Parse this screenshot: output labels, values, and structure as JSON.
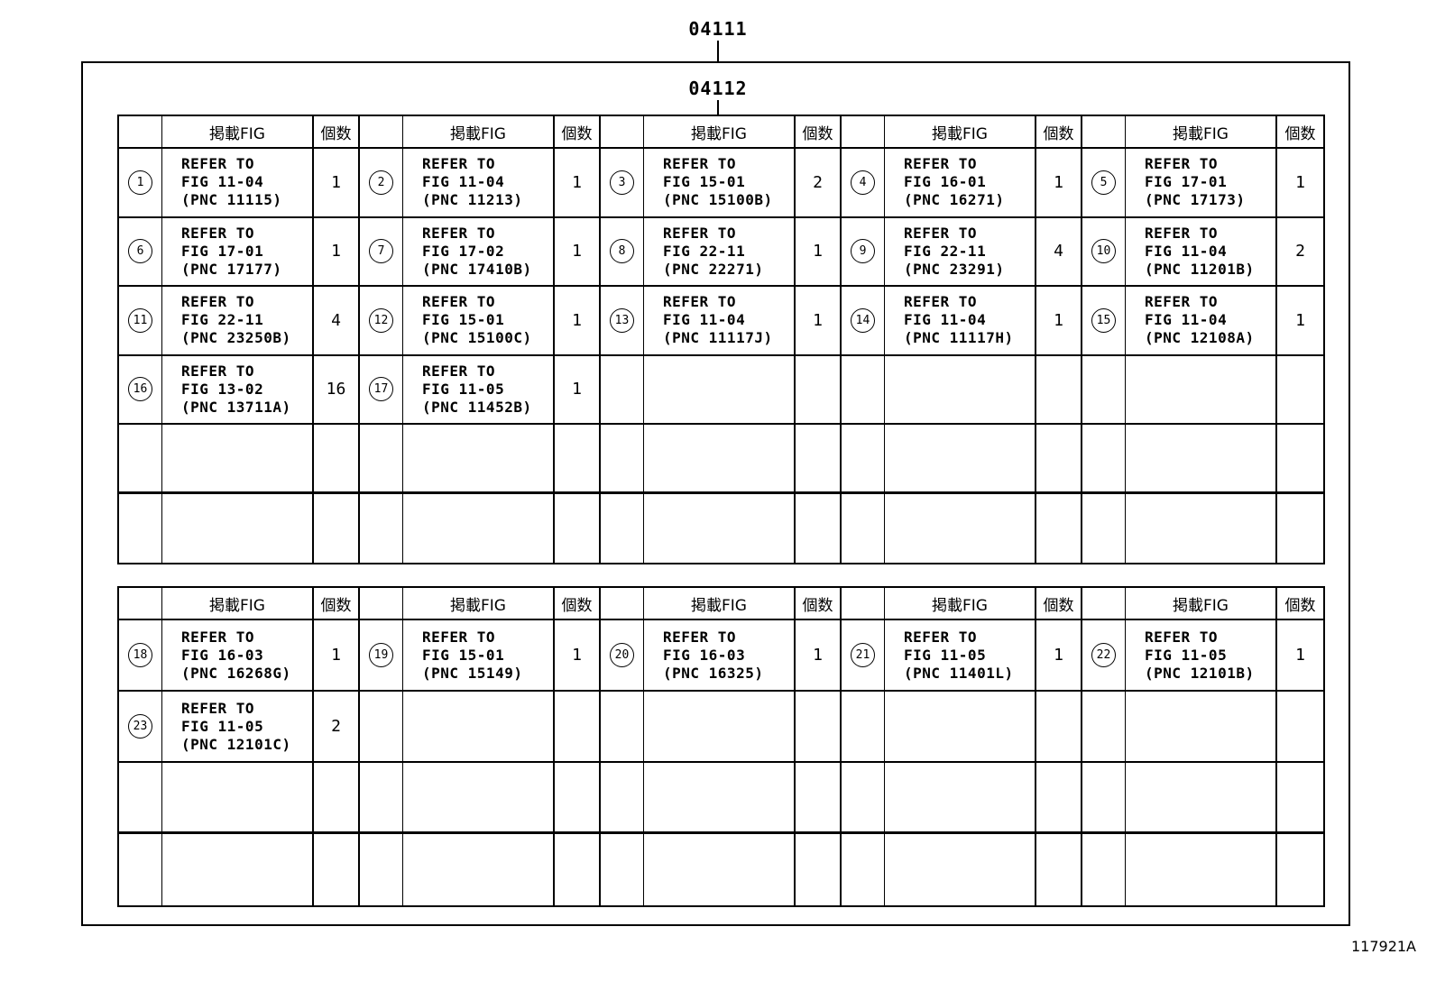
{
  "page": {
    "label_04111": "04111",
    "label_04112": "04112",
    "doc_code": "117921A"
  },
  "headers": {
    "fig": "掲載FIG",
    "qty": "個数"
  },
  "labels": {
    "refer": "REFER TO"
  },
  "tables": [
    {
      "name": "upper",
      "rows": [
        [
          {
            "no": "1",
            "fig": "FIG 11-04",
            "pnc": "(PNC 11115)",
            "qty": "1"
          },
          {
            "no": "2",
            "fig": "FIG 11-04",
            "pnc": "(PNC 11213)",
            "qty": "1"
          },
          {
            "no": "3",
            "fig": "FIG 15-01",
            "pnc": "(PNC 15100B)",
            "qty": "2"
          },
          {
            "no": "4",
            "fig": "FIG 16-01",
            "pnc": "(PNC 16271)",
            "qty": "1"
          },
          {
            "no": "5",
            "fig": "FIG 17-01",
            "pnc": "(PNC 17173)",
            "qty": "1"
          }
        ],
        [
          {
            "no": "6",
            "fig": "FIG 17-01",
            "pnc": "(PNC 17177)",
            "qty": "1"
          },
          {
            "no": "7",
            "fig": "FIG 17-02",
            "pnc": "(PNC 17410B)",
            "qty": "1"
          },
          {
            "no": "8",
            "fig": "FIG 22-11",
            "pnc": "(PNC 22271)",
            "qty": "1"
          },
          {
            "no": "9",
            "fig": "FIG 22-11",
            "pnc": "(PNC 23291)",
            "qty": "4"
          },
          {
            "no": "10",
            "fig": "FIG 11-04",
            "pnc": "(PNC 11201B)",
            "qty": "2"
          }
        ],
        [
          {
            "no": "11",
            "fig": "FIG 22-11",
            "pnc": "(PNC 23250B)",
            "qty": "4"
          },
          {
            "no": "12",
            "fig": "FIG 15-01",
            "pnc": "(PNC 15100C)",
            "qty": "1"
          },
          {
            "no": "13",
            "fig": "FIG 11-04",
            "pnc": "(PNC 11117J)",
            "qty": "1"
          },
          {
            "no": "14",
            "fig": "FIG 11-04",
            "pnc": "(PNC 11117H)",
            "qty": "1"
          },
          {
            "no": "15",
            "fig": "FIG 11-04",
            "pnc": "(PNC 12108A)",
            "qty": "1"
          }
        ],
        [
          {
            "no": "16",
            "fig": "FIG 13-02",
            "pnc": "(PNC 13711A)",
            "qty": "16"
          },
          {
            "no": "17",
            "fig": "FIG 11-05",
            "pnc": "(PNC 11452B)",
            "qty": "1"
          },
          null,
          null,
          null
        ],
        [
          null,
          null,
          null,
          null,
          null
        ],
        [
          null,
          null,
          null,
          null,
          null
        ]
      ]
    },
    {
      "name": "lower",
      "rows": [
        [
          {
            "no": "18",
            "fig": "FIG 16-03",
            "pnc": "(PNC 16268G)",
            "qty": "1"
          },
          {
            "no": "19",
            "fig": "FIG 15-01",
            "pnc": "(PNC 15149)",
            "qty": "1"
          },
          {
            "no": "20",
            "fig": "FIG 16-03",
            "pnc": "(PNC 16325)",
            "qty": "1"
          },
          {
            "no": "21",
            "fig": "FIG 11-05",
            "pnc": "(PNC 11401L)",
            "qty": "1"
          },
          {
            "no": "22",
            "fig": "FIG 11-05",
            "pnc": "(PNC 12101B)",
            "qty": "1"
          }
        ],
        [
          {
            "no": "23",
            "fig": "FIG 11-05",
            "pnc": "(PNC 12101C)",
            "qty": "2"
          },
          null,
          null,
          null,
          null
        ],
        [
          null,
          null,
          null,
          null,
          null
        ],
        [
          null,
          null,
          null,
          null,
          null
        ]
      ]
    }
  ]
}
